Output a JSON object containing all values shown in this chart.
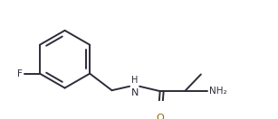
{
  "bg_color": "#ffffff",
  "bond_color": "#2d2d3a",
  "atom_colors": {
    "F": "#2d2d3a",
    "O": "#8b6a00",
    "N": "#2d2d3a",
    "C": "#2d2d3a"
  },
  "figsize": [
    3.07,
    1.32
  ],
  "dpi": 100,
  "lw": 1.4
}
